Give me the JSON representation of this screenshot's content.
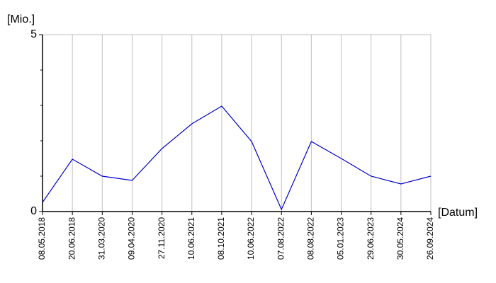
{
  "chart_data": {
    "type": "line",
    "y_label": "[Mio.]",
    "x_label": "[Datum]",
    "categories": [
      "08.05.2018",
      "20.06.2018",
      "31.03.2020",
      "09.04.2020",
      "27.11.2020",
      "10.06.2021",
      "08.10.2021",
      "10.06.2022",
      "07.08.2022",
      "08.08.2022",
      "05.01.2023",
      "29.06.2023",
      "30.05.2024",
      "26.09.2024"
    ],
    "values": [
      0.26,
      1.48,
      1.0,
      0.88,
      1.78,
      2.48,
      2.98,
      1.98,
      0.06,
      1.98,
      1.5,
      1.0,
      0.78,
      1.0
    ],
    "color": "#0000cc",
    "ylim": [
      0,
      5
    ],
    "yticks": [
      0,
      5
    ],
    "minor_yticks": [
      1,
      2,
      3,
      4
    ],
    "grid": true
  }
}
